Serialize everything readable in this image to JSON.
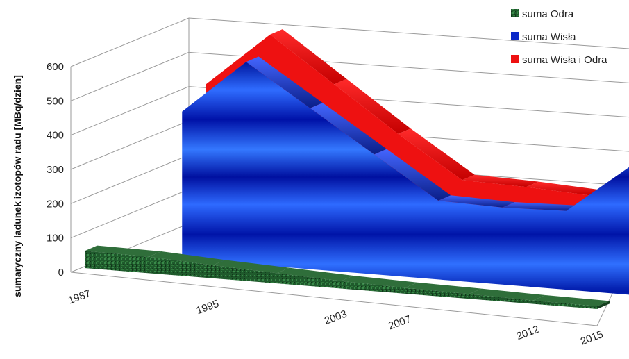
{
  "chart_data": {
    "type": "area",
    "view": "3d",
    "ylabel": "sumaryczny ladunek izotopów radu [MBq/dzien]",
    "xlabel": "",
    "title": "",
    "ylim": [
      0,
      600
    ],
    "yticks": [
      0,
      100,
      200,
      300,
      400,
      500,
      600
    ],
    "grid": true,
    "legend_position": "top-right",
    "x_tick_labels": [
      "1987",
      "1995",
      "2003",
      "2007",
      "2012",
      "2015"
    ],
    "x": [
      "1987",
      "1991",
      "1995",
      "1999",
      "2003",
      "2007",
      "2009",
      "2012",
      "2015"
    ],
    "series": [
      {
        "name": "suma Odra",
        "color": "#1e5c2e",
        "values": [
          50,
          48,
          38,
          30,
          22,
          17,
          14,
          10,
          8
        ]
      },
      {
        "name": "suma Wisła",
        "color": "#0a28c8",
        "values": [
          null,
          430,
          590,
          470,
          350,
          230,
          225,
          230,
          375
        ]
      },
      {
        "name": "suma Wisła i Odra",
        "color": "#ee1111",
        "values": [
          null,
          480,
          640,
          510,
          380,
          260,
          255,
          245,
          390
        ]
      }
    ]
  }
}
